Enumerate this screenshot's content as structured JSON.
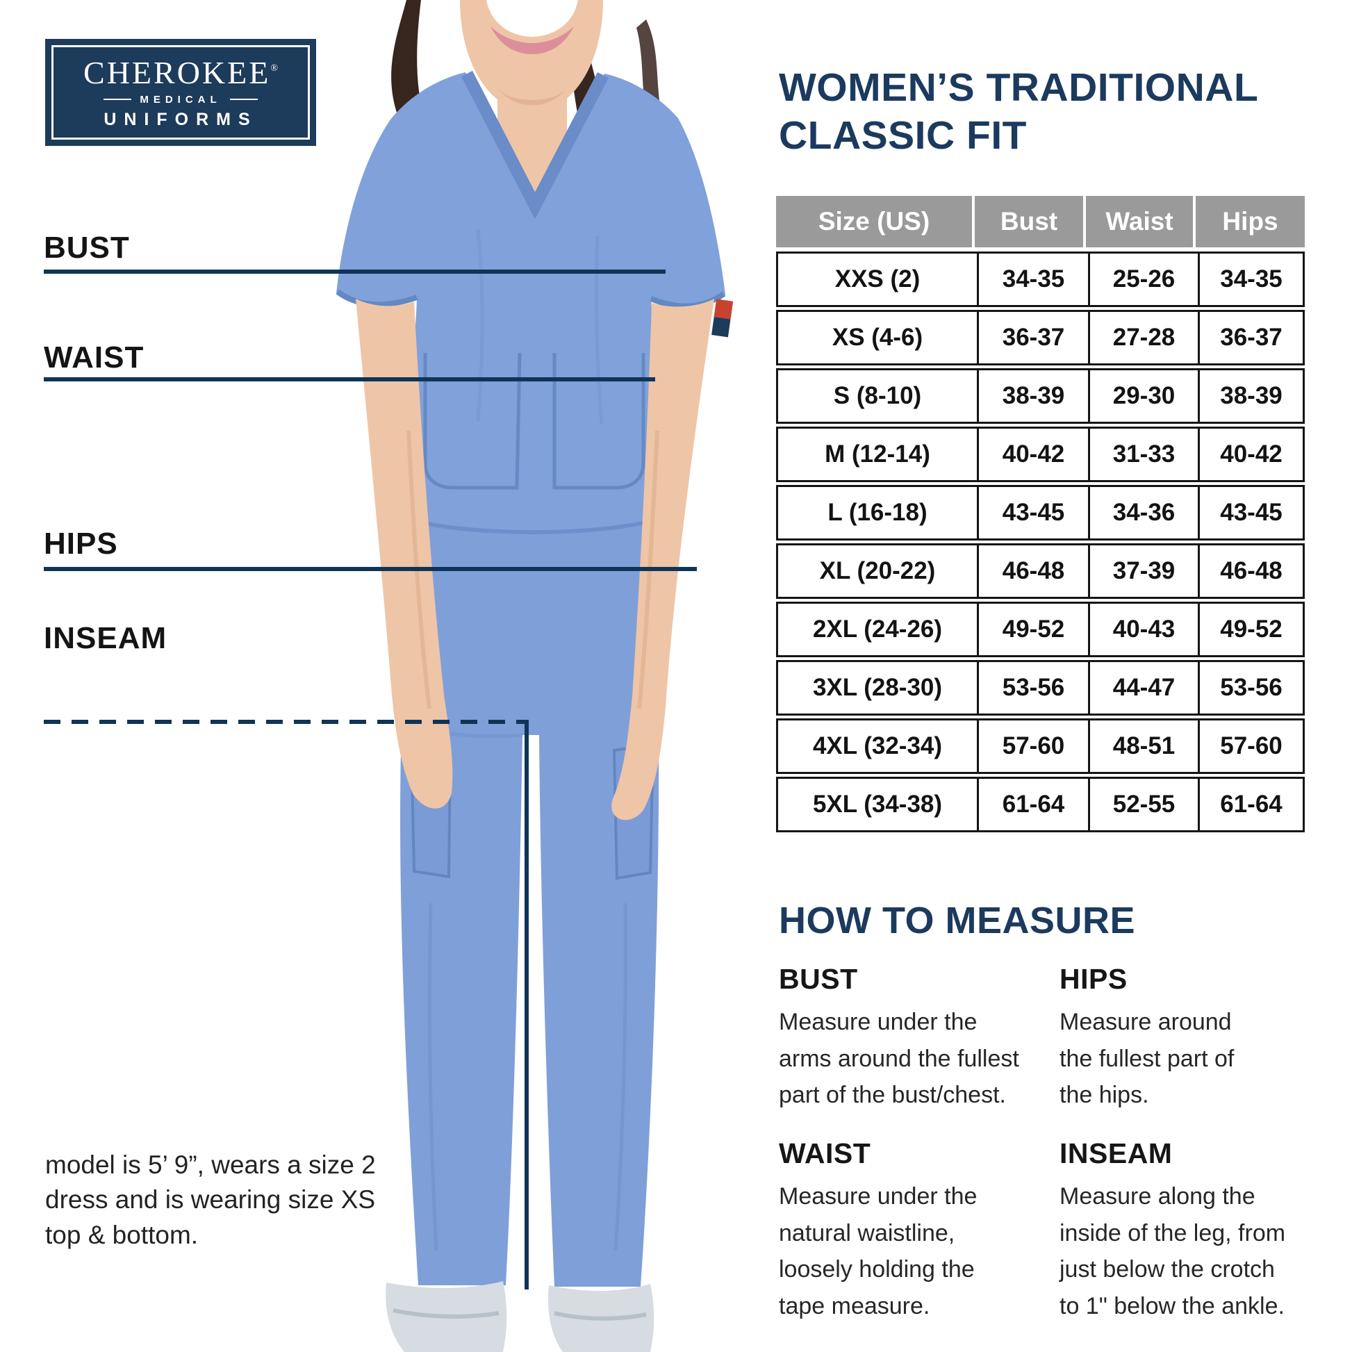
{
  "logo": {
    "brand": "CHEROKEE",
    "registered": "®",
    "line2": "MEDICAL",
    "line3": "UNIFORMS"
  },
  "title": {
    "line1": "WOMEN’S TRADITIONAL",
    "line2": "CLASSIC FIT"
  },
  "body_labels": {
    "bust": "BUST",
    "waist": "WAIST",
    "hips": "HIPS",
    "inseam": "INSEAM"
  },
  "model_note": "model is 5’ 9”, wears a size 2\ndress and is wearing size XS\ntop & bottom.",
  "size_table": {
    "headers": [
      "Size (US)",
      "Bust",
      "Waist",
      "Hips"
    ],
    "rows": [
      [
        "XXS (2)",
        "34-35",
        "25-26",
        "34-35"
      ],
      [
        "XS (4-6)",
        "36-37",
        "27-28",
        "36-37"
      ],
      [
        "S (8-10)",
        "38-39",
        "29-30",
        "38-39"
      ],
      [
        "M (12-14)",
        "40-42",
        "31-33",
        "40-42"
      ],
      [
        "L (16-18)",
        "43-45",
        "34-36",
        "43-45"
      ],
      [
        "XL (20-22)",
        "46-48",
        "37-39",
        "46-48"
      ],
      [
        "2XL (24-26)",
        "49-52",
        "40-43",
        "49-52"
      ],
      [
        "3XL (28-30)",
        "53-56",
        "44-47",
        "53-56"
      ],
      [
        "4XL (32-34)",
        "57-60",
        "48-51",
        "57-60"
      ],
      [
        "5XL (34-38)",
        "61-64",
        "52-55",
        "61-64"
      ]
    ]
  },
  "how_to_measure": {
    "heading": "HOW TO MEASURE",
    "sections": [
      {
        "label": "BUST",
        "text": "Measure under the\narms around the fullest\npart of the bust/chest."
      },
      {
        "label": "HIPS",
        "text": "Measure around\nthe fullest part of\nthe hips."
      },
      {
        "label": "WAIST",
        "text": "Measure under the\nnatural waistline,\nloosely holding the\ntape measure."
      },
      {
        "label": "INSEAM",
        "text": "Measure along the\ninside of the leg, from\njust below the crotch\nto 1\" below the ankle."
      }
    ]
  },
  "colors": {
    "navy": "#1b3a5e",
    "line_navy": "#0f3457",
    "table_header_gray": "#9a9a9a",
    "scrub_blue": "#81a1da",
    "tag_red": "#c8432f"
  },
  "chart_data": {
    "type": "table",
    "title": "Women’s Traditional Classic Fit — sizes (inches)",
    "columns": [
      "Size (US)",
      "Bust",
      "Waist",
      "Hips"
    ],
    "rows": [
      [
        "XXS (2)",
        "34-35",
        "25-26",
        "34-35"
      ],
      [
        "XS (4-6)",
        "36-37",
        "27-28",
        "36-37"
      ],
      [
        "S (8-10)",
        "38-39",
        "29-30",
        "38-39"
      ],
      [
        "M (12-14)",
        "40-42",
        "31-33",
        "40-42"
      ],
      [
        "L (16-18)",
        "43-45",
        "34-36",
        "43-45"
      ],
      [
        "XL (20-22)",
        "46-48",
        "37-39",
        "46-48"
      ],
      [
        "2XL (24-26)",
        "49-52",
        "40-43",
        "49-52"
      ],
      [
        "3XL (28-30)",
        "53-56",
        "44-47",
        "53-56"
      ],
      [
        "4XL (32-34)",
        "57-60",
        "48-51",
        "57-60"
      ],
      [
        "5XL (34-38)",
        "61-64",
        "52-55",
        "61-64"
      ]
    ]
  }
}
